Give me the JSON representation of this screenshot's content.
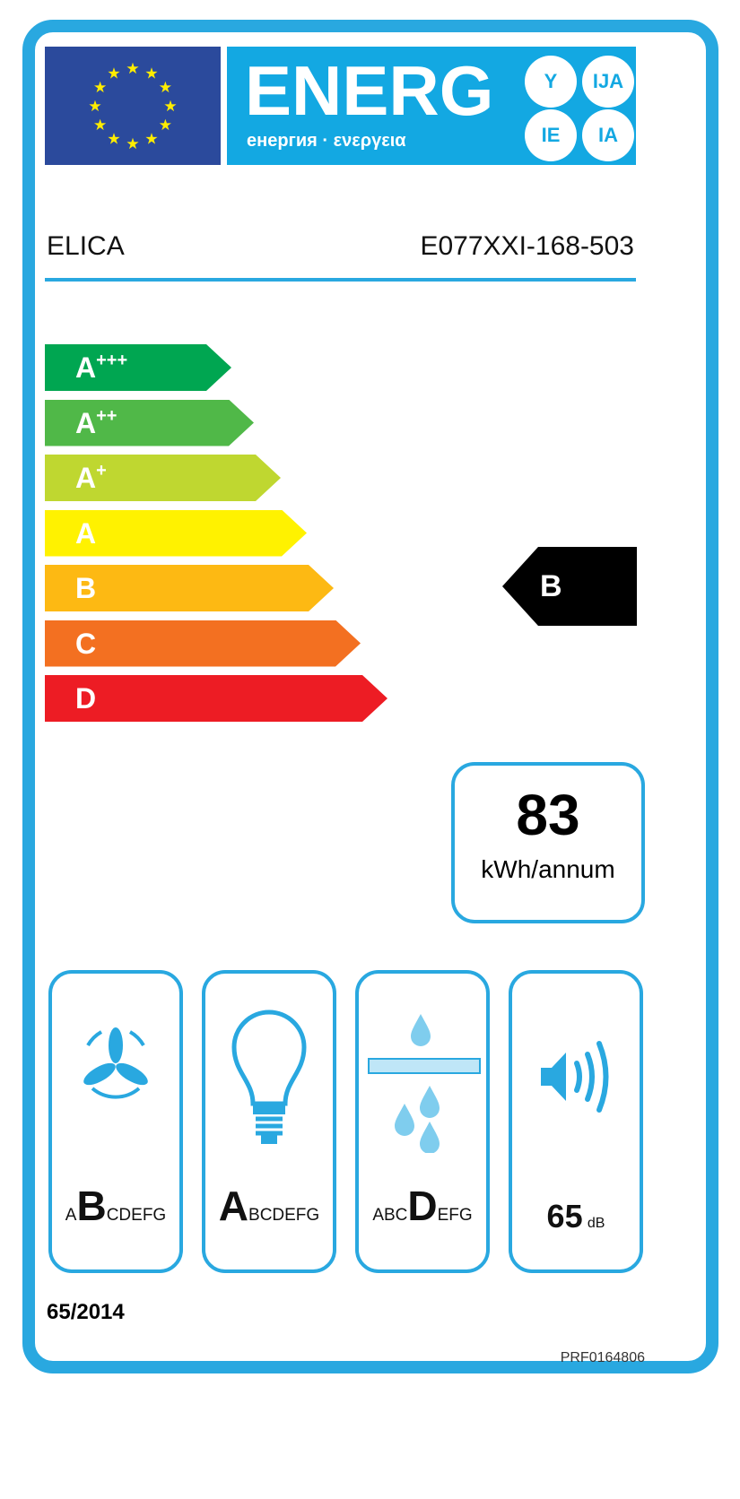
{
  "header": {
    "title": "ENERG",
    "subtitle": "енергия · ενεργεια",
    "suffixes": [
      "Y",
      "IJA",
      "IE",
      "IA"
    ]
  },
  "supplier": "ELICA",
  "model": "E077XXI-168-503",
  "classes": [
    {
      "label": "A",
      "sup": "+++",
      "color": "#00a651"
    },
    {
      "label": "A",
      "sup": "++",
      "color": "#50b848"
    },
    {
      "label": "A",
      "sup": "+",
      "color": "#bfd730"
    },
    {
      "label": "A",
      "sup": "",
      "color": "#fff200"
    },
    {
      "label": "B",
      "sup": "",
      "color": "#fdb913"
    },
    {
      "label": "C",
      "sup": "",
      "color": "#f37021"
    },
    {
      "label": "D",
      "sup": "",
      "color": "#ed1c24"
    }
  ],
  "rating": "B",
  "consumption": {
    "value": "83",
    "unit": "kWh/annum"
  },
  "fluid_dynamic": {
    "icon": "fan-icon",
    "pre": "A",
    "class": "B",
    "post": "CDEFG"
  },
  "lighting": {
    "icon": "light-bulb-icon",
    "pre": "",
    "class": "A",
    "post": "BCDEFG"
  },
  "grease_filter": {
    "icon": "grease-filter-icon",
    "pre": "ABC",
    "class": "D",
    "post": "EFG"
  },
  "noise": {
    "icon": "speaker-icon",
    "value": "65",
    "unit": "dB"
  },
  "regulation": "65/2014",
  "code": "PRF0164806",
  "colors": {
    "frame": "#29a8e0",
    "eu_blue": "#2b4a9c",
    "band": "#13a8e2"
  }
}
